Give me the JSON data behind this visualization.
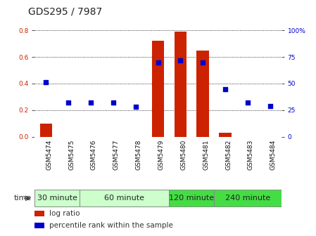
{
  "title": "GDS295 / 7987",
  "samples": [
    "GSM5474",
    "GSM5475",
    "GSM5476",
    "GSM5477",
    "GSM5478",
    "GSM5479",
    "GSM5480",
    "GSM5481",
    "GSM5482",
    "GSM5483",
    "GSM5484"
  ],
  "log_ratio": [
    0.1,
    -0.01,
    -0.01,
    -0.01,
    -0.01,
    0.72,
    0.79,
    0.65,
    0.03,
    -0.01,
    -0.01
  ],
  "percentile_pct": [
    51,
    32,
    32,
    32,
    28,
    70,
    72,
    70,
    45,
    32,
    29
  ],
  "groups": [
    {
      "label": "30 minute",
      "start": 0,
      "end": 2,
      "color": "#ccffcc"
    },
    {
      "label": "60 minute",
      "start": 2,
      "end": 6,
      "color": "#ccffcc"
    },
    {
      "label": "120 minute",
      "start": 6,
      "end": 8,
      "color": "#44dd44"
    },
    {
      "label": "240 minute",
      "start": 8,
      "end": 11,
      "color": "#44dd44"
    }
  ],
  "bar_color": "#cc2200",
  "scatter_color": "#0000cc",
  "ylim_left": [
    0.0,
    0.85
  ],
  "ylim_right": [
    0,
    106.25
  ],
  "yticks_left": [
    0.0,
    0.2,
    0.4,
    0.6,
    0.8
  ],
  "yticks_right": [
    0,
    25,
    50,
    75,
    100
  ],
  "ytick_labels_right": [
    "0",
    "25",
    "50",
    "75",
    "100%"
  ],
  "background_color": "#ffffff",
  "plot_bg": "#ffffff",
  "grid_color": "#000000",
  "title_fontsize": 10,
  "tick_fontsize": 6.5,
  "group_fontsize": 8,
  "legend_fontsize": 7.5,
  "xtick_bg": "#dddddd"
}
